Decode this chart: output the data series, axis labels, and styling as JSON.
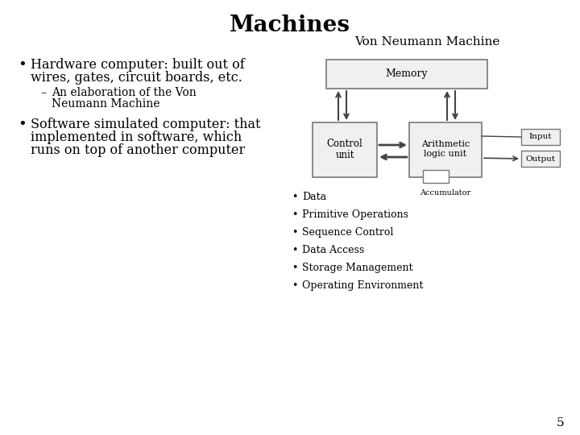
{
  "title": "Machines",
  "background_color": "#ffffff",
  "title_fontsize": 20,
  "bullet1_line1": "Hardware computer: built out of",
  "bullet1_line2": "wires, gates, circuit boards, etc.",
  "sub_line1": "An elaboration of the Von",
  "sub_line2": "Neumann Machine",
  "bullet2_line1": "Software simulated computer: that",
  "bullet2_line2": "implemented in software, which",
  "bullet2_line3": "runs on top of another computer",
  "diagram_title": "Von Neumann Machine",
  "right_bullets": [
    "Data",
    "Primitive Operations",
    "Sequence Control",
    "Data Access",
    "Storage Management",
    "Operating Environment"
  ],
  "page_number": "5",
  "text_color": "#000000",
  "box_edge": "#777777",
  "box_fill_mem": "#f0f0f0",
  "box_fill_cu": "#f0f0f0",
  "box_fill_alu": "#f0f0f0",
  "box_fill_io": "#f0f0f0",
  "box_fill_acc": "#ffffff"
}
